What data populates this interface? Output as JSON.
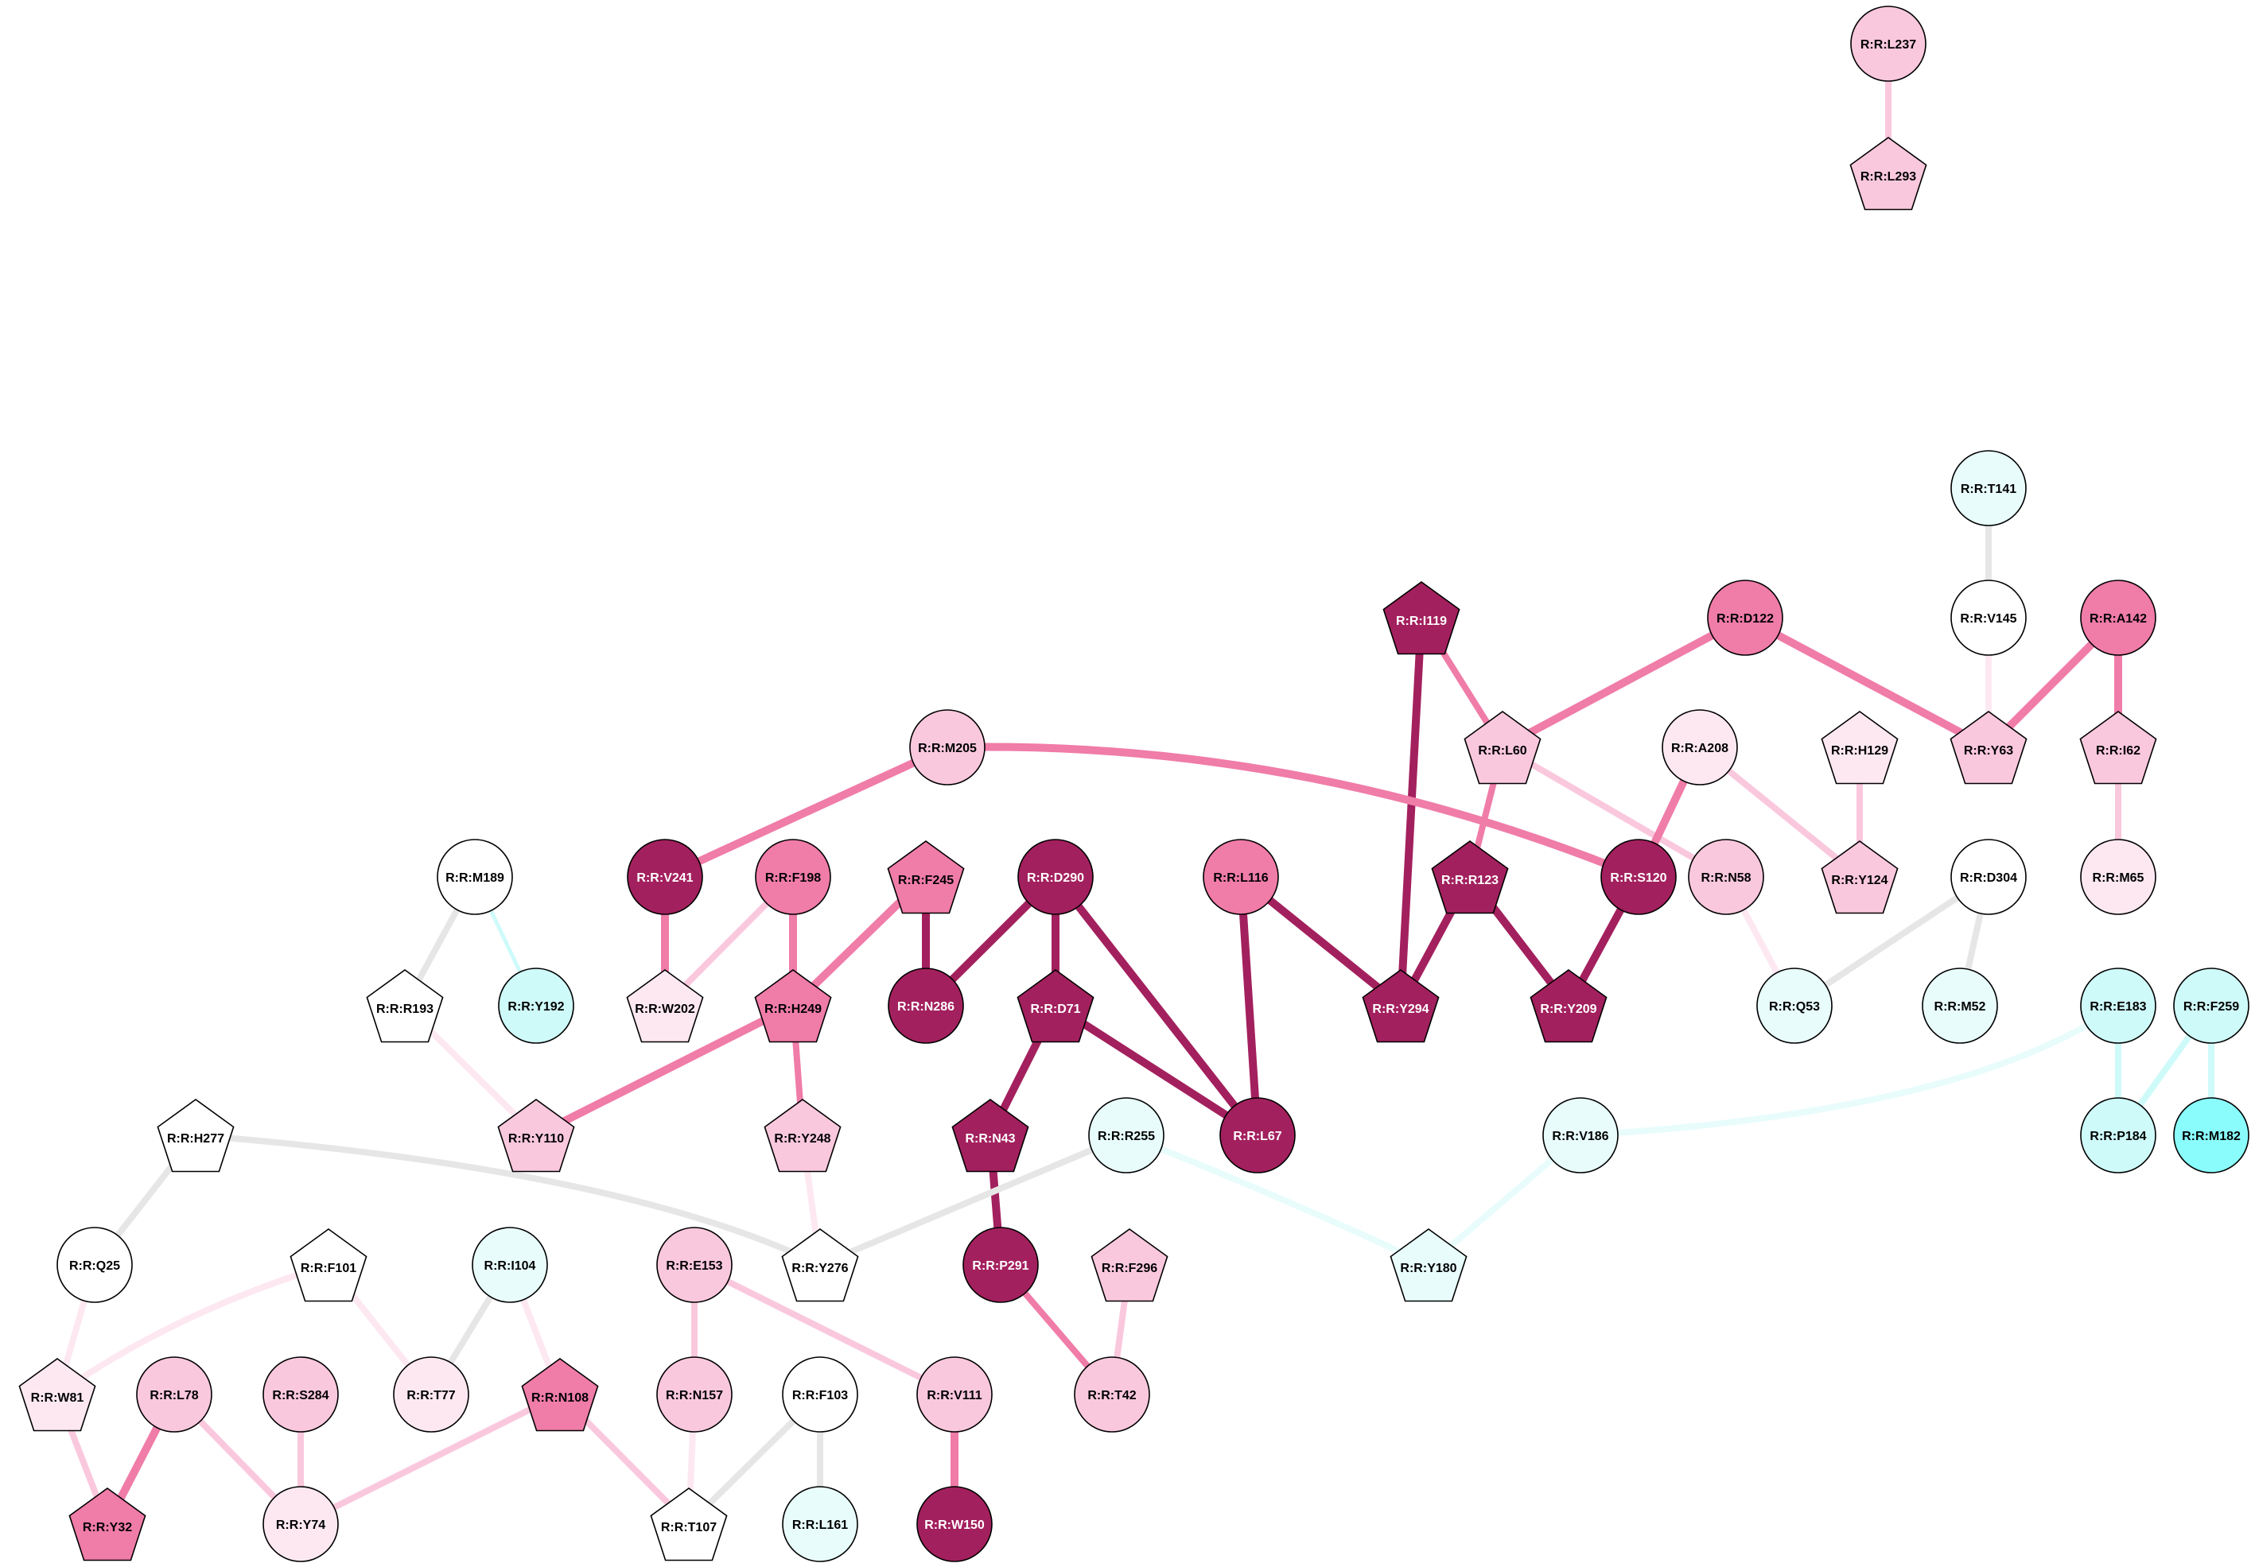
{
  "palette": {
    "deep": "#A3205E",
    "mid": "#F07CA8",
    "light": "#FAC8DD",
    "pale": "#FDE8F1",
    "white": "#FFFFFF",
    "cyan_pale": "#E8FCFC",
    "cyan_light": "#CFFAFA",
    "cyan_strong": "#8AFCFC",
    "grey_edge": "#E6E6E6",
    "node_stroke": "#000000"
  },
  "nodes": [
    {
      "id": "R:R:L237",
      "shape": "circle",
      "fill": "light"
    },
    {
      "id": "R:R:L293",
      "shape": "pentagon",
      "fill": "light"
    },
    {
      "id": "R:R:T141",
      "shape": "circle",
      "fill": "cyan_pale"
    },
    {
      "id": "R:R:V145",
      "shape": "circle",
      "fill": "white"
    },
    {
      "id": "R:R:I119",
      "shape": "pentagon",
      "fill": "deep"
    },
    {
      "id": "R:R:D122",
      "shape": "circle",
      "fill": "mid"
    },
    {
      "id": "R:R:A142",
      "shape": "circle",
      "fill": "mid"
    },
    {
      "id": "R:R:M205",
      "shape": "circle",
      "fill": "light"
    },
    {
      "id": "R:R:L60",
      "shape": "pentagon",
      "fill": "light"
    },
    {
      "id": "R:R:A208",
      "shape": "circle",
      "fill": "pale"
    },
    {
      "id": "R:R:H129",
      "shape": "pentagon",
      "fill": "pale"
    },
    {
      "id": "R:R:Y63",
      "shape": "pentagon",
      "fill": "light"
    },
    {
      "id": "R:R:I62",
      "shape": "pentagon",
      "fill": "light"
    },
    {
      "id": "R:R:M189",
      "shape": "circle",
      "fill": "white"
    },
    {
      "id": "R:R:V241",
      "shape": "circle",
      "fill": "deep"
    },
    {
      "id": "R:R:F198",
      "shape": "circle",
      "fill": "mid"
    },
    {
      "id": "R:R:F245",
      "shape": "pentagon",
      "fill": "mid"
    },
    {
      "id": "R:R:D290",
      "shape": "circle",
      "fill": "deep"
    },
    {
      "id": "R:R:L116",
      "shape": "circle",
      "fill": "mid"
    },
    {
      "id": "R:R:R123",
      "shape": "pentagon",
      "fill": "deep"
    },
    {
      "id": "R:R:S120",
      "shape": "circle",
      "fill": "deep"
    },
    {
      "id": "R:R:N58",
      "shape": "circle",
      "fill": "light"
    },
    {
      "id": "R:R:Y124",
      "shape": "pentagon",
      "fill": "light"
    },
    {
      "id": "R:R:D304",
      "shape": "circle",
      "fill": "white"
    },
    {
      "id": "R:R:M65",
      "shape": "circle",
      "fill": "pale"
    },
    {
      "id": "R:R:R193",
      "shape": "pentagon",
      "fill": "white"
    },
    {
      "id": "R:R:Y192",
      "shape": "circle",
      "fill": "cyan_light"
    },
    {
      "id": "R:R:W202",
      "shape": "pentagon",
      "fill": "pale"
    },
    {
      "id": "R:R:H249",
      "shape": "pentagon",
      "fill": "mid"
    },
    {
      "id": "R:R:N286",
      "shape": "circle",
      "fill": "deep"
    },
    {
      "id": "R:R:D71",
      "shape": "pentagon",
      "fill": "deep"
    },
    {
      "id": "R:R:Y294",
      "shape": "pentagon",
      "fill": "deep"
    },
    {
      "id": "R:R:Y209",
      "shape": "pentagon",
      "fill": "deep"
    },
    {
      "id": "R:R:Q53",
      "shape": "circle",
      "fill": "cyan_pale"
    },
    {
      "id": "R:R:M52",
      "shape": "circle",
      "fill": "cyan_pale"
    },
    {
      "id": "R:R:E183",
      "shape": "circle",
      "fill": "cyan_light"
    },
    {
      "id": "R:R:F259",
      "shape": "circle",
      "fill": "cyan_light"
    },
    {
      "id": "R:R:H277",
      "shape": "pentagon",
      "fill": "white"
    },
    {
      "id": "R:R:Y110",
      "shape": "pentagon",
      "fill": "light"
    },
    {
      "id": "R:R:Y248",
      "shape": "pentagon",
      "fill": "light"
    },
    {
      "id": "R:R:N43",
      "shape": "pentagon",
      "fill": "deep"
    },
    {
      "id": "R:R:R255",
      "shape": "circle",
      "fill": "cyan_pale"
    },
    {
      "id": "R:R:L67",
      "shape": "circle",
      "fill": "deep"
    },
    {
      "id": "R:R:V186",
      "shape": "circle",
      "fill": "cyan_pale"
    },
    {
      "id": "R:R:P184",
      "shape": "circle",
      "fill": "cyan_light"
    },
    {
      "id": "R:R:M182",
      "shape": "circle",
      "fill": "cyan_strong"
    },
    {
      "id": "R:R:Q25",
      "shape": "circle",
      "fill": "white"
    },
    {
      "id": "R:R:F101",
      "shape": "pentagon",
      "fill": "white"
    },
    {
      "id": "R:R:I104",
      "shape": "circle",
      "fill": "cyan_pale"
    },
    {
      "id": "R:R:E153",
      "shape": "circle",
      "fill": "light"
    },
    {
      "id": "R:R:Y276",
      "shape": "pentagon",
      "fill": "white"
    },
    {
      "id": "R:R:P291",
      "shape": "circle",
      "fill": "deep"
    },
    {
      "id": "R:R:F296",
      "shape": "pentagon",
      "fill": "light"
    },
    {
      "id": "R:R:Y180",
      "shape": "pentagon",
      "fill": "cyan_pale"
    },
    {
      "id": "R:R:W81",
      "shape": "pentagon",
      "fill": "pale"
    },
    {
      "id": "R:R:L78",
      "shape": "circle",
      "fill": "light"
    },
    {
      "id": "R:R:S284",
      "shape": "circle",
      "fill": "light"
    },
    {
      "id": "R:R:T77",
      "shape": "circle",
      "fill": "pale"
    },
    {
      "id": "R:R:N108",
      "shape": "pentagon",
      "fill": "mid"
    },
    {
      "id": "R:R:N157",
      "shape": "circle",
      "fill": "light"
    },
    {
      "id": "R:R:F103",
      "shape": "circle",
      "fill": "white"
    },
    {
      "id": "R:R:V111",
      "shape": "circle",
      "fill": "light"
    },
    {
      "id": "R:R:T42",
      "shape": "circle",
      "fill": "light"
    },
    {
      "id": "R:R:Y32",
      "shape": "pentagon",
      "fill": "mid"
    },
    {
      "id": "R:R:Y74",
      "shape": "circle",
      "fill": "pale"
    },
    {
      "id": "R:R:T107",
      "shape": "pentagon",
      "fill": "white"
    },
    {
      "id": "R:R:L161",
      "shape": "circle",
      "fill": "cyan_pale"
    },
    {
      "id": "R:R:W150",
      "shape": "circle",
      "fill": "deep"
    }
  ],
  "edges": [
    {
      "source": "R:R:L237",
      "target": "R:R:L293",
      "color": "light",
      "weight": 3
    },
    {
      "source": "R:R:T141",
      "target": "R:R:V145",
      "color": "grey_edge",
      "weight": 3
    },
    {
      "source": "R:R:V145",
      "target": "R:R:Y63",
      "color": "pale",
      "weight": 3
    },
    {
      "source": "R:R:I119",
      "target": "R:R:L60",
      "color": "mid",
      "weight": 3
    },
    {
      "source": "R:R:I119",
      "target": "R:R:Y294",
      "color": "deep",
      "weight": 4
    },
    {
      "source": "R:R:D122",
      "target": "R:R:L60",
      "color": "mid",
      "weight": 4
    },
    {
      "source": "R:R:D122",
      "target": "R:R:Y63",
      "color": "mid",
      "weight": 4
    },
    {
      "source": "R:R:A142",
      "target": "R:R:Y63",
      "color": "mid",
      "weight": 4
    },
    {
      "source": "R:R:A142",
      "target": "R:R:I62",
      "color": "mid",
      "weight": 4
    },
    {
      "source": "R:R:I62",
      "target": "R:R:M65",
      "color": "light",
      "weight": 3
    },
    {
      "source": "R:R:M205",
      "target": "R:R:V241",
      "color": "mid",
      "weight": 4
    },
    {
      "source": "R:R:M205",
      "target": "R:R:S120",
      "color": "mid",
      "weight": 4
    },
    {
      "source": "R:R:L60",
      "target": "R:R:R123",
      "color": "mid",
      "weight": 3
    },
    {
      "source": "R:R:L60",
      "target": "R:R:N58",
      "color": "light",
      "weight": 3
    },
    {
      "source": "R:R:A208",
      "target": "R:R:S120",
      "color": "mid",
      "weight": 4
    },
    {
      "source": "R:R:A208",
      "target": "R:R:Y124",
      "color": "light",
      "weight": 3
    },
    {
      "source": "R:R:H129",
      "target": "R:R:Y124",
      "color": "light",
      "weight": 3
    },
    {
      "source": "R:R:M189",
      "target": "R:R:R193",
      "color": "grey_edge",
      "weight": 3
    },
    {
      "source": "R:R:M189",
      "target": "R:R:Y192",
      "color": "cyan_light",
      "weight": 2
    },
    {
      "source": "R:R:V241",
      "target": "R:R:W202",
      "color": "mid",
      "weight": 4
    },
    {
      "source": "R:R:F198",
      "target": "R:R:W202",
      "color": "light",
      "weight": 3
    },
    {
      "source": "R:R:F198",
      "target": "R:R:H249",
      "color": "mid",
      "weight": 4
    },
    {
      "source": "R:R:F245",
      "target": "R:R:H249",
      "color": "mid",
      "weight": 4
    },
    {
      "source": "R:R:F245",
      "target": "R:R:N286",
      "color": "deep",
      "weight": 4
    },
    {
      "source": "R:R:D290",
      "target": "R:R:N286",
      "color": "deep",
      "weight": 4
    },
    {
      "source": "R:R:D290",
      "target": "R:R:D71",
      "color": "deep",
      "weight": 4
    },
    {
      "source": "R:R:D290",
      "target": "R:R:L67",
      "color": "deep",
      "weight": 4
    },
    {
      "source": "R:R:L116",
      "target": "R:R:Y294",
      "color": "deep",
      "weight": 4
    },
    {
      "source": "R:R:L116",
      "target": "R:R:L67",
      "color": "deep",
      "weight": 4
    },
    {
      "source": "R:R:R123",
      "target": "R:R:Y294",
      "color": "deep",
      "weight": 4
    },
    {
      "source": "R:R:R123",
      "target": "R:R:Y209",
      "color": "deep",
      "weight": 4
    },
    {
      "source": "R:R:S120",
      "target": "R:R:Y209",
      "color": "deep",
      "weight": 4
    },
    {
      "source": "R:R:N58",
      "target": "R:R:Q53",
      "color": "pale",
      "weight": 3
    },
    {
      "source": "R:R:D304",
      "target": "R:R:Q53",
      "color": "grey_edge",
      "weight": 3
    },
    {
      "source": "R:R:D304",
      "target": "R:R:M52",
      "color": "grey_edge",
      "weight": 3
    },
    {
      "source": "R:R:R193",
      "target": "R:R:Y110",
      "color": "pale",
      "weight": 3
    },
    {
      "source": "R:R:H249",
      "target": "R:R:Y110",
      "color": "mid",
      "weight": 4
    },
    {
      "source": "R:R:H249",
      "target": "R:R:Y248",
      "color": "mid",
      "weight": 3
    },
    {
      "source": "R:R:Y248",
      "target": "R:R:Y276",
      "color": "pale",
      "weight": 3
    },
    {
      "source": "R:R:D71",
      "target": "R:R:N43",
      "color": "deep",
      "weight": 4
    },
    {
      "source": "R:R:D71",
      "target": "R:R:L67",
      "color": "deep",
      "weight": 4
    },
    {
      "source": "R:R:N43",
      "target": "R:R:P291",
      "color": "deep",
      "weight": 4
    },
    {
      "source": "R:R:E183",
      "target": "R:R:V186",
      "color": "cyan_pale",
      "weight": 3
    },
    {
      "source": "R:R:E183",
      "target": "R:R:P184",
      "color": "cyan_light",
      "weight": 3
    },
    {
      "source": "R:R:F259",
      "target": "R:R:P184",
      "color": "cyan_light",
      "weight": 3
    },
    {
      "source": "R:R:F259",
      "target": "R:R:M182",
      "color": "cyan_light",
      "weight": 3
    },
    {
      "source": "R:R:H277",
      "target": "R:R:Q25",
      "color": "grey_edge",
      "weight": 3
    },
    {
      "source": "R:R:H277",
      "target": "R:R:Y276",
      "color": "grey_edge",
      "weight": 3
    },
    {
      "source": "R:R:R255",
      "target": "R:R:Y276",
      "color": "grey_edge",
      "weight": 3
    },
    {
      "source": "R:R:R255",
      "target": "R:R:Y180",
      "color": "cyan_pale",
      "weight": 3
    },
    {
      "source": "R:R:V186",
      "target": "R:R:Y180",
      "color": "cyan_pale",
      "weight": 3
    },
    {
      "source": "R:R:Q25",
      "target": "R:R:W81",
      "color": "pale",
      "weight": 3
    },
    {
      "source": "R:R:F101",
      "target": "R:R:W81",
      "color": "pale",
      "weight": 3
    },
    {
      "source": "R:R:F101",
      "target": "R:R:T77",
      "color": "pale",
      "weight": 3
    },
    {
      "source": "R:R:I104",
      "target": "R:R:T77",
      "color": "grey_edge",
      "weight": 3
    },
    {
      "source": "R:R:I104",
      "target": "R:R:N108",
      "color": "pale",
      "weight": 3
    },
    {
      "source": "R:R:E153",
      "target": "R:R:N157",
      "color": "light",
      "weight": 3
    },
    {
      "source": "R:R:E153",
      "target": "R:R:V111",
      "color": "light",
      "weight": 3
    },
    {
      "source": "R:R:P291",
      "target": "R:R:T42",
      "color": "mid",
      "weight": 3
    },
    {
      "source": "R:R:F296",
      "target": "R:R:T42",
      "color": "light",
      "weight": 3
    },
    {
      "source": "R:R:W81",
      "target": "R:R:Y32",
      "color": "light",
      "weight": 3
    },
    {
      "source": "R:R:L78",
      "target": "R:R:Y32",
      "color": "mid",
      "weight": 4
    },
    {
      "source": "R:R:L78",
      "target": "R:R:Y74",
      "color": "light",
      "weight": 3
    },
    {
      "source": "R:R:S284",
      "target": "R:R:Y74",
      "color": "light",
      "weight": 3
    },
    {
      "source": "R:R:N108",
      "target": "R:R:Y74",
      "color": "light",
      "weight": 3
    },
    {
      "source": "R:R:N108",
      "target": "R:R:T107",
      "color": "light",
      "weight": 3
    },
    {
      "source": "R:R:N157",
      "target": "R:R:T107",
      "color": "pale",
      "weight": 3
    },
    {
      "source": "R:R:F103",
      "target": "R:R:T107",
      "color": "grey_edge",
      "weight": 3
    },
    {
      "source": "R:R:F103",
      "target": "R:R:L161",
      "color": "grey_edge",
      "weight": 3
    },
    {
      "source": "R:R:V111",
      "target": "R:R:W150",
      "color": "mid",
      "weight": 4
    }
  ]
}
